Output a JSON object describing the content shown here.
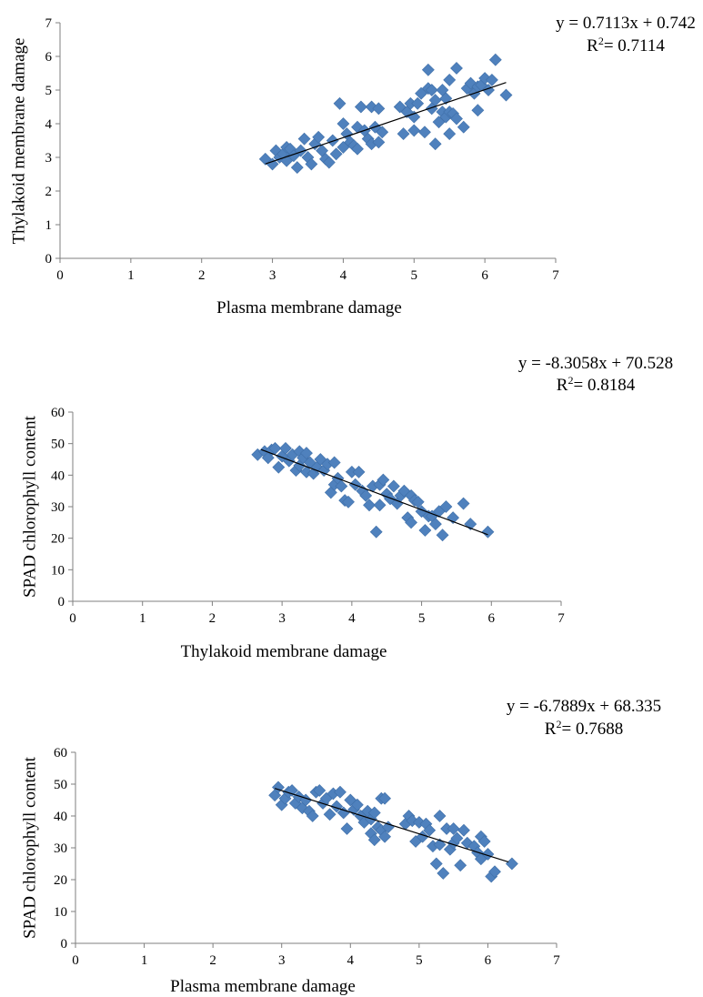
{
  "colors": {
    "marker": "#4f81bd",
    "marker_edge": "#3f6fa8",
    "trendline": "#000000",
    "axis": "#7f7f7f"
  },
  "chart_data": [
    {
      "type": "scatter",
      "xlabel": "Plasma membrane damage",
      "ylabel": "Thylakoid membrane damage",
      "xlim": [
        0,
        7
      ],
      "ylim": [
        0,
        7
      ],
      "xticks": [
        "0",
        "1",
        "2",
        "3",
        "4",
        "5",
        "6",
        "7"
      ],
      "yticks": [
        "0",
        "1",
        "2",
        "3",
        "4",
        "5",
        "6",
        "7"
      ],
      "grid": false,
      "marker": "diamond",
      "trendline": {
        "slope": 0.7113,
        "intercept": 0.742,
        "x_range": [
          2.9,
          6.3
        ]
      },
      "equation": "y = 0.7113x + 0.742",
      "r2_prefix": "R",
      "r2_sup": "2",
      "r2_value": "= 0.7114",
      "points": [
        [
          2.9,
          2.95
        ],
        [
          3.0,
          2.8
        ],
        [
          3.05,
          3.2
        ],
        [
          3.1,
          3.0
        ],
        [
          3.15,
          3.1
        ],
        [
          3.2,
          2.9
        ],
        [
          3.2,
          3.3
        ],
        [
          3.25,
          3.25
        ],
        [
          3.3,
          3.05
        ],
        [
          3.35,
          2.7
        ],
        [
          3.4,
          3.2
        ],
        [
          3.45,
          3.55
        ],
        [
          3.5,
          3.0
        ],
        [
          3.55,
          2.8
        ],
        [
          3.6,
          3.4
        ],
        [
          3.65,
          3.6
        ],
        [
          3.7,
          3.2
        ],
        [
          3.75,
          2.95
        ],
        [
          3.8,
          2.85
        ],
        [
          3.85,
          3.5
        ],
        [
          3.9,
          3.1
        ],
        [
          3.95,
          4.6
        ],
        [
          4.0,
          3.3
        ],
        [
          4.0,
          4.0
        ],
        [
          4.05,
          3.7
        ],
        [
          4.1,
          3.45
        ],
        [
          4.15,
          3.35
        ],
        [
          4.2,
          3.9
        ],
        [
          4.2,
          3.25
        ],
        [
          4.25,
          4.5
        ],
        [
          4.3,
          3.8
        ],
        [
          4.35,
          3.55
        ],
        [
          4.4,
          4.5
        ],
        [
          4.4,
          3.4
        ],
        [
          4.45,
          3.9
        ],
        [
          4.5,
          4.45
        ],
        [
          4.5,
          3.45
        ],
        [
          4.55,
          3.75
        ],
        [
          4.8,
          4.5
        ],
        [
          4.85,
          3.7
        ],
        [
          4.9,
          4.35
        ],
        [
          4.95,
          4.6
        ],
        [
          5.0,
          4.2
        ],
        [
          5.0,
          3.8
        ],
        [
          5.05,
          4.6
        ],
        [
          5.1,
          4.9
        ],
        [
          5.15,
          3.75
        ],
        [
          5.2,
          5.6
        ],
        [
          5.2,
          5.05
        ],
        [
          5.25,
          4.45
        ],
        [
          5.25,
          5.0
        ],
        [
          5.3,
          4.7
        ],
        [
          5.3,
          3.4
        ],
        [
          5.35,
          4.05
        ],
        [
          5.4,
          4.35
        ],
        [
          5.4,
          5.0
        ],
        [
          5.45,
          4.75
        ],
        [
          5.45,
          4.2
        ],
        [
          5.5,
          3.7
        ],
        [
          5.5,
          4.35
        ],
        [
          5.5,
          5.3
        ],
        [
          5.55,
          4.3
        ],
        [
          5.6,
          4.15
        ],
        [
          5.6,
          5.65
        ],
        [
          5.7,
          3.9
        ],
        [
          5.75,
          5.05
        ],
        [
          5.8,
          5.2
        ],
        [
          5.85,
          4.9
        ],
        [
          5.9,
          4.4
        ],
        [
          5.9,
          5.1
        ],
        [
          5.95,
          5.15
        ],
        [
          6.0,
          5.35
        ],
        [
          6.05,
          5.0
        ],
        [
          6.1,
          5.3
        ],
        [
          6.15,
          5.9
        ],
        [
          6.3,
          4.85
        ]
      ]
    },
    {
      "type": "scatter",
      "xlabel": "Thylakoid membrane damage",
      "ylabel": "SPAD chlorophyll content",
      "xlim": [
        0,
        7
      ],
      "ylim": [
        0,
        60
      ],
      "xticks": [
        "0",
        "1",
        "2",
        "3",
        "4",
        "5",
        "6",
        "7"
      ],
      "yticks": [
        "0",
        "10",
        "20",
        "30",
        "40",
        "50",
        "60"
      ],
      "grid": false,
      "marker": "diamond",
      "trendline": {
        "slope": -8.3058,
        "intercept": 70.528,
        "x_range": [
          2.7,
          5.95
        ]
      },
      "equation": "y = -8.3058x + 70.528",
      "r2_prefix": "R",
      "r2_sup": "2",
      "r2_value": "= 0.8184",
      "points": [
        [
          2.65,
          46.5
        ],
        [
          2.75,
          47.5
        ],
        [
          2.8,
          45.5
        ],
        [
          2.85,
          48.0
        ],
        [
          2.9,
          48.5
        ],
        [
          2.95,
          42.5
        ],
        [
          3.0,
          46.0
        ],
        [
          3.05,
          48.5
        ],
        [
          3.1,
          44.5
        ],
        [
          3.15,
          46.5
        ],
        [
          3.2,
          41.5
        ],
        [
          3.25,
          43.0
        ],
        [
          3.25,
          47.5
        ],
        [
          3.3,
          45.5
        ],
        [
          3.35,
          47.0
        ],
        [
          3.35,
          41.0
        ],
        [
          3.4,
          44.0
        ],
        [
          3.45,
          40.5
        ],
        [
          3.5,
          42.5
        ],
        [
          3.55,
          45.0
        ],
        [
          3.6,
          41.5
        ],
        [
          3.65,
          43.5
        ],
        [
          3.7,
          34.5
        ],
        [
          3.75,
          37.0
        ],
        [
          3.75,
          44.0
        ],
        [
          3.8,
          39.0
        ],
        [
          3.85,
          36.5
        ],
        [
          3.9,
          32.0
        ],
        [
          3.95,
          31.5
        ],
        [
          4.0,
          41.0
        ],
        [
          4.05,
          37.0
        ],
        [
          4.1,
          41.0
        ],
        [
          4.15,
          35.0
        ],
        [
          4.2,
          33.5
        ],
        [
          4.25,
          30.5
        ],
        [
          4.3,
          36.5
        ],
        [
          4.35,
          22.0
        ],
        [
          4.4,
          30.5
        ],
        [
          4.4,
          37.0
        ],
        [
          4.45,
          38.5
        ],
        [
          4.5,
          34.0
        ],
        [
          4.55,
          32.5
        ],
        [
          4.6,
          36.5
        ],
        [
          4.65,
          31.0
        ],
        [
          4.7,
          33.5
        ],
        [
          4.75,
          35.0
        ],
        [
          4.8,
          26.5
        ],
        [
          4.85,
          25.0
        ],
        [
          4.85,
          33.5
        ],
        [
          4.9,
          32.0
        ],
        [
          4.95,
          31.5
        ],
        [
          5.0,
          28.5
        ],
        [
          5.05,
          22.5
        ],
        [
          5.1,
          27.0
        ],
        [
          5.15,
          27.0
        ],
        [
          5.2,
          24.5
        ],
        [
          5.25,
          28.5
        ],
        [
          5.3,
          21.0
        ],
        [
          5.35,
          30.0
        ],
        [
          5.45,
          26.5
        ],
        [
          5.6,
          31.0
        ],
        [
          5.7,
          24.5
        ],
        [
          5.95,
          22.0
        ]
      ]
    },
    {
      "type": "scatter",
      "xlabel": "Plasma membrane damage",
      "ylabel": "SPAD chlorophyll content",
      "xlim": [
        0,
        7
      ],
      "ylim": [
        0,
        60
      ],
      "xticks": [
        "0",
        "1",
        "2",
        "3",
        "4",
        "5",
        "6",
        "7"
      ],
      "yticks": [
        "0",
        "10",
        "20",
        "30",
        "40",
        "50",
        "60"
      ],
      "grid": false,
      "marker": "diamond",
      "trendline": {
        "slope": -6.7889,
        "intercept": 68.335,
        "x_range": [
          2.9,
          6.3
        ]
      },
      "equation": "y = -6.7889x + 68.335",
      "r2_prefix": "R",
      "r2_sup": "2",
      "r2_value": "= 0.7688",
      "points": [
        [
          2.9,
          46.5
        ],
        [
          2.95,
          49.0
        ],
        [
          3.0,
          43.5
        ],
        [
          3.05,
          45.5
        ],
        [
          3.1,
          47.5
        ],
        [
          3.15,
          48.0
        ],
        [
          3.2,
          44.0
        ],
        [
          3.25,
          46.0
        ],
        [
          3.3,
          42.5
        ],
        [
          3.35,
          45.0
        ],
        [
          3.4,
          41.5
        ],
        [
          3.45,
          40.0
        ],
        [
          3.5,
          47.5
        ],
        [
          3.55,
          48.0
        ],
        [
          3.6,
          44.0
        ],
        [
          3.65,
          45.5
        ],
        [
          3.7,
          40.5
        ],
        [
          3.75,
          47.0
        ],
        [
          3.8,
          43.0
        ],
        [
          3.85,
          47.5
        ],
        [
          3.9,
          41.0
        ],
        [
          3.95,
          36.0
        ],
        [
          4.0,
          45.0
        ],
        [
          4.05,
          42.0
        ],
        [
          4.1,
          43.5
        ],
        [
          4.15,
          40.0
        ],
        [
          4.2,
          38.0
        ],
        [
          4.25,
          41.5
        ],
        [
          4.3,
          34.5
        ],
        [
          4.3,
          39.0
        ],
        [
          4.35,
          32.5
        ],
        [
          4.35,
          41.0
        ],
        [
          4.4,
          36.5
        ],
        [
          4.45,
          35.5
        ],
        [
          4.45,
          45.5
        ],
        [
          4.5,
          45.5
        ],
        [
          4.5,
          33.5
        ],
        [
          4.55,
          36.5
        ],
        [
          4.8,
          37.5
        ],
        [
          4.85,
          40.0
        ],
        [
          4.9,
          38.5
        ],
        [
          4.95,
          32.0
        ],
        [
          5.0,
          38.0
        ],
        [
          5.05,
          33.5
        ],
        [
          5.1,
          37.5
        ],
        [
          5.15,
          35.5
        ],
        [
          5.2,
          30.5
        ],
        [
          5.25,
          25.0
        ],
        [
          5.3,
          40.0
        ],
        [
          5.3,
          31.0
        ],
        [
          5.35,
          22.0
        ],
        [
          5.4,
          36.0
        ],
        [
          5.45,
          29.5
        ],
        [
          5.5,
          36.0
        ],
        [
          5.5,
          31.5
        ],
        [
          5.55,
          33.0
        ],
        [
          5.6,
          24.5
        ],
        [
          5.65,
          35.5
        ],
        [
          5.7,
          31.5
        ],
        [
          5.8,
          30.5
        ],
        [
          5.85,
          28.5
        ],
        [
          5.9,
          26.5
        ],
        [
          5.9,
          33.5
        ],
        [
          5.95,
          32.0
        ],
        [
          6.0,
          28.0
        ],
        [
          6.05,
          21.0
        ],
        [
          6.1,
          22.5
        ],
        [
          6.35,
          25.0
        ]
      ]
    }
  ]
}
